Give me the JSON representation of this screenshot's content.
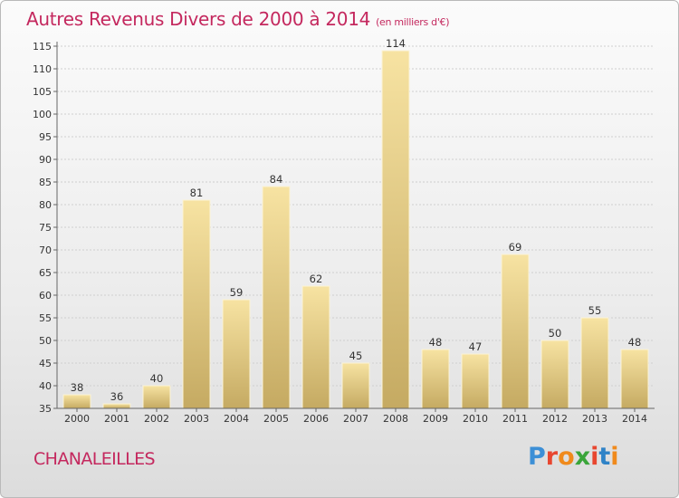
{
  "header": {
    "title": "Autres Revenus Divers de 2000 à 2014",
    "subtitle": "(en milliers d'€)"
  },
  "footer": {
    "commune": "CHANALEILLES",
    "logo_text": "Proxiti",
    "logo_colors": [
      "#3c8fd6",
      "#e8462f",
      "#f08a1c",
      "#3aa53a",
      "#e8462f",
      "#2f83c7",
      "#f08a1c"
    ]
  },
  "colors": {
    "title": "#c4285e",
    "bar_light": "#f7e3a2",
    "bar_dark": "#c5aa62"
  },
  "chart_data": {
    "type": "bar",
    "title": "Autres Revenus Divers de 2000 à 2014",
    "categories": [
      "2000",
      "2001",
      "2002",
      "2003",
      "2004",
      "2005",
      "2006",
      "2007",
      "2008",
      "2009",
      "2010",
      "2011",
      "2012",
      "2013",
      "2014"
    ],
    "values": [
      38,
      36,
      40,
      81,
      59,
      84,
      62,
      45,
      114,
      48,
      47,
      69,
      50,
      55,
      48
    ],
    "ylim": [
      35,
      115
    ],
    "yticks": [
      35,
      40,
      45,
      50,
      55,
      60,
      65,
      70,
      75,
      80,
      85,
      90,
      95,
      100,
      105,
      110,
      115
    ],
    "grid": true,
    "xlabel": "",
    "ylabel": ""
  }
}
